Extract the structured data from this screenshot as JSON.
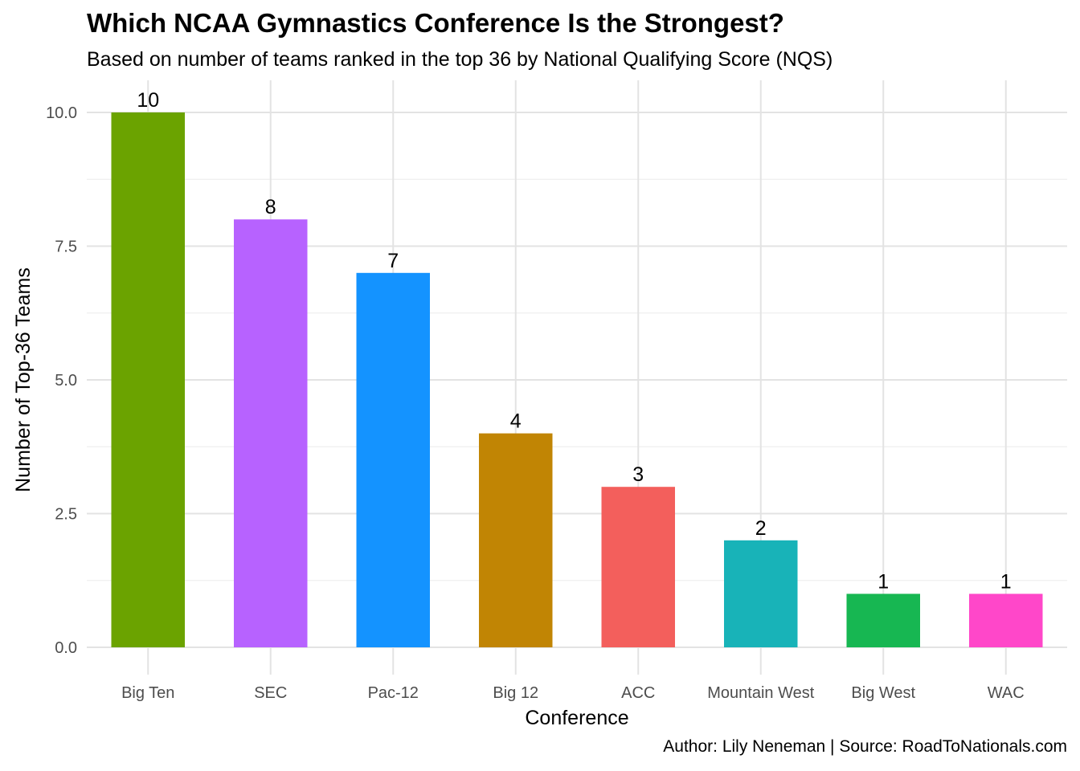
{
  "chart_data": {
    "type": "bar",
    "title": "Which NCAA Gymnastics Conference Is the Strongest?",
    "subtitle": "Based on number of teams ranked in the top 36 by National Qualifying Score (NQS)",
    "caption": "Author: Lily Neneman | Source: RoadToNationals.com",
    "xlabel": "Conference",
    "ylabel": "Number of Top-36 Teams",
    "categories": [
      "Big Ten",
      "SEC",
      "Pac-12",
      "Big 12",
      "ACC",
      "Mountain West",
      "Big West",
      "WAC"
    ],
    "values": [
      10,
      8,
      7,
      4,
      3,
      2,
      1,
      1
    ],
    "colors": [
      "#6BA300",
      "#B762FF",
      "#1493FF",
      "#C18504",
      "#F35F5C",
      "#18B3B8",
      "#17B752",
      "#FF47C9"
    ],
    "ylim": [
      0,
      10
    ],
    "yticks": [
      0,
      2.5,
      5,
      7.5,
      10
    ],
    "ytick_labels": [
      "0.0",
      "2.5",
      "5.0",
      "7.5",
      "10.0"
    ],
    "grid": true,
    "legend": "none"
  }
}
